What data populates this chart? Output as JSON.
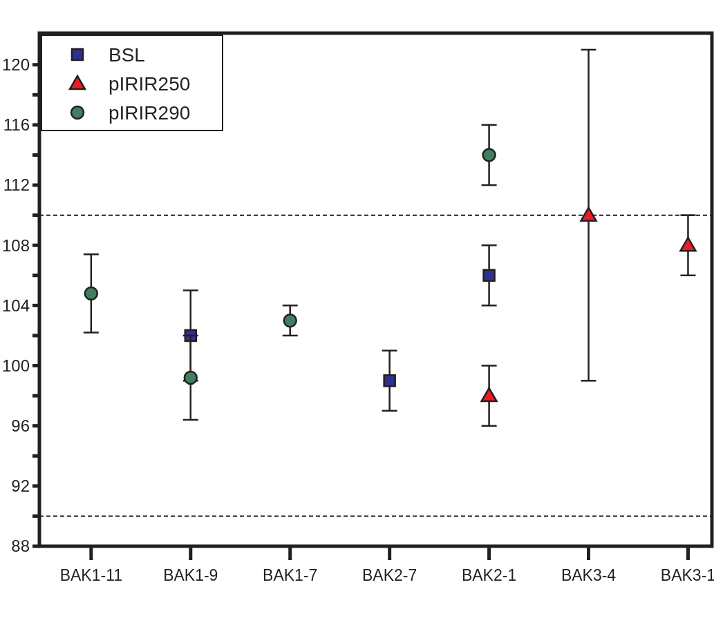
{
  "chart_data": {
    "type": "scatter",
    "categories": [
      "BAK1-11",
      "BAK1-9",
      "BAK1-7",
      "BAK2-7",
      "BAK2-1",
      "BAK3-4",
      "BAK3-1"
    ],
    "series": [
      {
        "name": "BSL",
        "color": "#2e3192",
        "marker": "square",
        "values": [
          null,
          102,
          null,
          99,
          106,
          null,
          null
        ],
        "errors": [
          null,
          3,
          null,
          2,
          2,
          null,
          null
        ]
      },
      {
        "name": "pIRIR250",
        "color": "#ed1c24",
        "marker": "triangle",
        "values": [
          null,
          null,
          null,
          null,
          98,
          110,
          108
        ],
        "errors": [
          null,
          null,
          null,
          null,
          2,
          [
            99,
            121
          ],
          2
        ]
      },
      {
        "name": "pIRIR290",
        "color": "#3f7f5f",
        "marker": "circle",
        "values": [
          104.8,
          99.2,
          103,
          null,
          114,
          null,
          null
        ],
        "errors": [
          2.6,
          2.8,
          1,
          null,
          2,
          null,
          null
        ]
      }
    ],
    "ylim": [
      88,
      122.1
    ],
    "yticks": [
      88,
      {
        "value": 90,
        "label": null
      },
      92,
      {
        "value": 94,
        "label": null
      },
      96,
      {
        "value": 98,
        "label": null
      },
      100,
      {
        "value": 102,
        "label": null
      },
      104,
      {
        "value": 106,
        "label": null
      },
      108,
      {
        "value": 110,
        "label": null
      },
      112,
      {
        "value": 114,
        "label": null
      },
      116,
      {
        "value": 118,
        "label": null
      },
      120
    ],
    "ref_lines": [
      {
        "axis": "y",
        "value": 110,
        "line_style": "dashed"
      },
      {
        "axis": "y",
        "value": 90,
        "line_style": "dashed"
      }
    ],
    "legend": "top left",
    "grid": false
  }
}
